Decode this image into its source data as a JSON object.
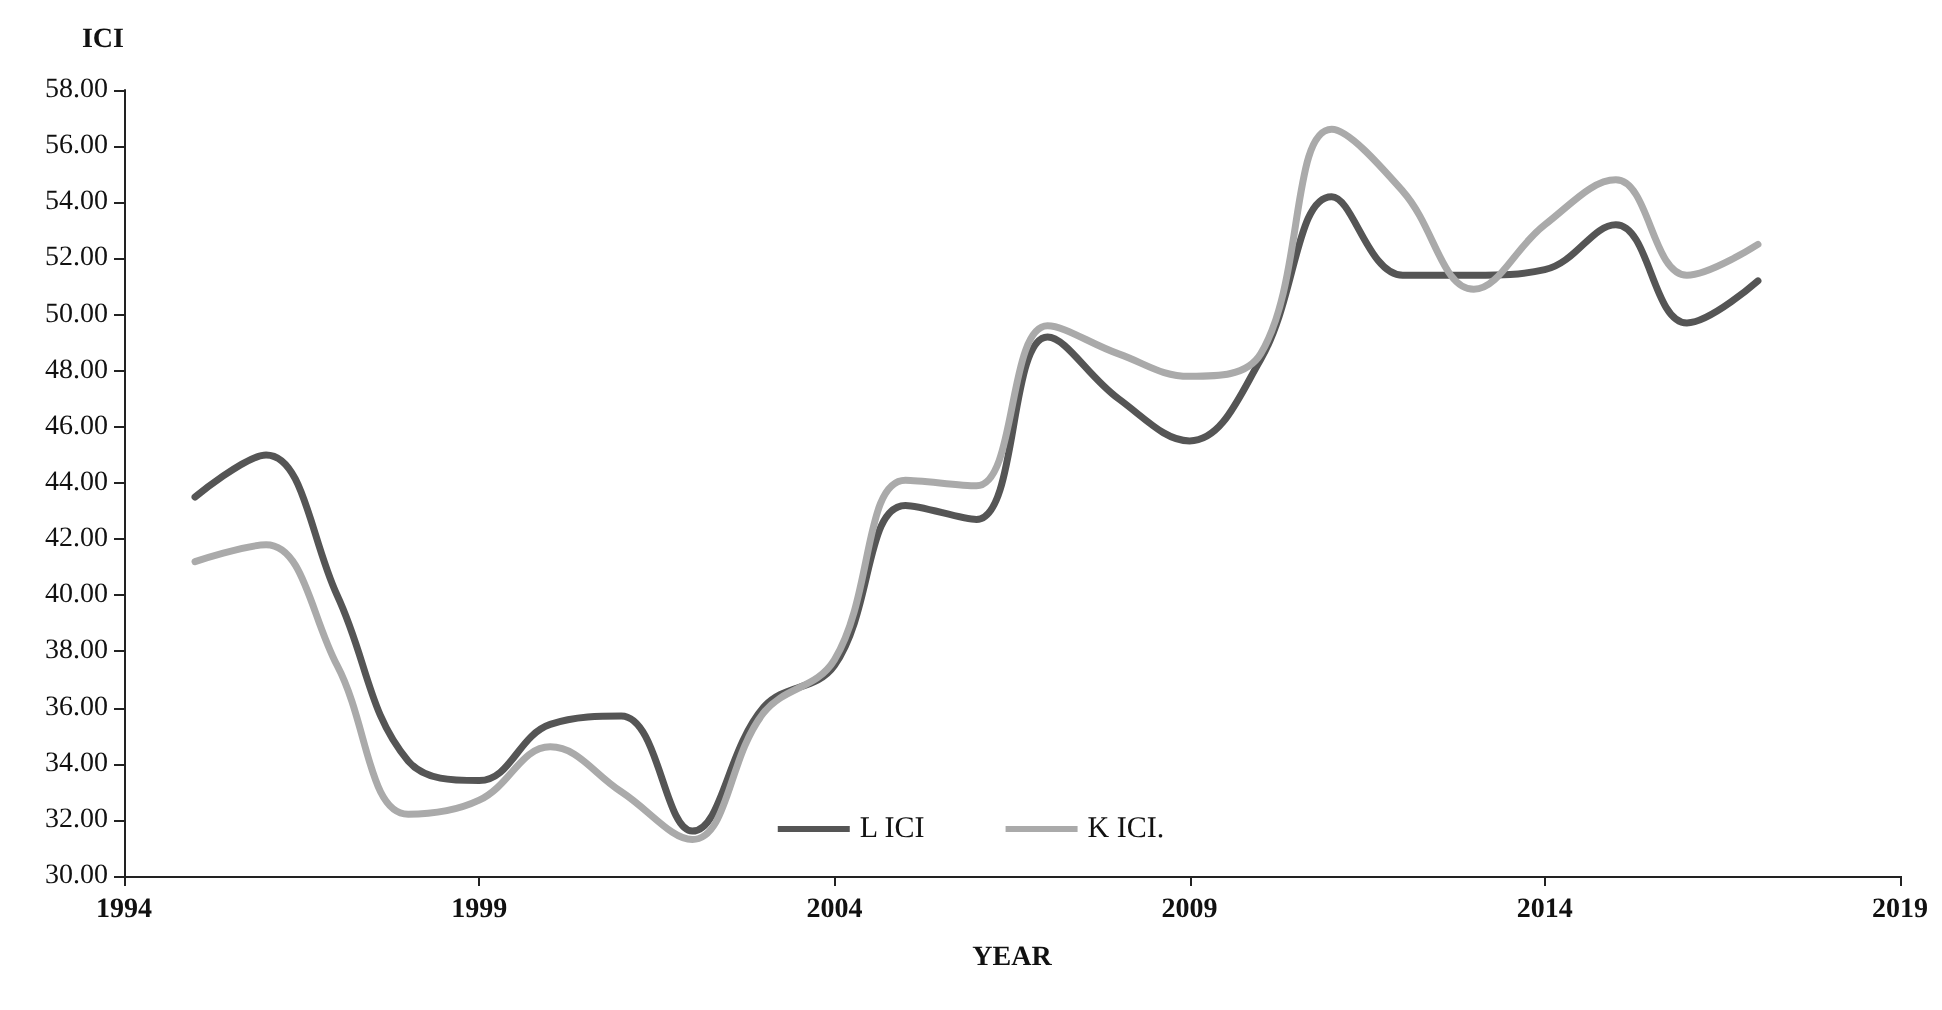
{
  "chart_data": {
    "type": "line",
    "xlabel": "YEAR",
    "ylabel": "ICI",
    "x": [
      1995,
      1996,
      1997,
      1998,
      1999,
      2000,
      2001,
      2002,
      2003,
      2004,
      2005,
      2006,
      2007,
      2008,
      2009,
      2010,
      2011,
      2012,
      2013,
      2014,
      2015,
      2016,
      2017
    ],
    "series": [
      {
        "name": "L ICI",
        "color": "#555555",
        "values": [
          43.5,
          45.0,
          40.0,
          34.1,
          33.4,
          35.4,
          35.7,
          31.6,
          36.0,
          37.5,
          43.2,
          42.7,
          49.2,
          47.0,
          45.5,
          48.4,
          54.2,
          51.4,
          51.4,
          51.6,
          53.2,
          49.7,
          51.2
        ]
      },
      {
        "name": "K ICI.",
        "color": "#aaaaaa",
        "values": [
          41.2,
          41.8,
          37.5,
          32.2,
          32.7,
          34.6,
          33.0,
          31.3,
          35.8,
          37.7,
          44.1,
          43.9,
          49.6,
          48.6,
          47.8,
          48.6,
          56.6,
          54.4,
          50.9,
          53.2,
          54.8,
          51.4,
          52.5
        ]
      }
    ],
    "xlim": [
      1994,
      2019
    ],
    "xticks": [
      1994,
      1999,
      2004,
      2009,
      2014,
      2019
    ],
    "ylim": [
      30,
      58
    ],
    "yticks": [
      {
        "value": 30,
        "label": "30.00"
      },
      {
        "value": 32,
        "label": "32.00"
      },
      {
        "value": 34,
        "label": "34.00"
      },
      {
        "value": 36,
        "label": "36.00"
      },
      {
        "value": 38,
        "label": "38.00"
      },
      {
        "value": 40,
        "label": "40.00"
      },
      {
        "value": 42,
        "label": "42.00"
      },
      {
        "value": 44,
        "label": "44.00"
      },
      {
        "value": 46,
        "label": "46.00"
      },
      {
        "value": 48,
        "label": "48.00"
      },
      {
        "value": 50,
        "label": "50.00"
      },
      {
        "value": 52,
        "label": "52.00"
      },
      {
        "value": 54,
        "label": "54.00"
      },
      {
        "value": 56,
        "label": "56.00"
      },
      {
        "value": 58,
        "label": "58.00"
      }
    ],
    "grid": false,
    "legend": "bottom",
    "marker": "none",
    "line_style": "solid"
  }
}
